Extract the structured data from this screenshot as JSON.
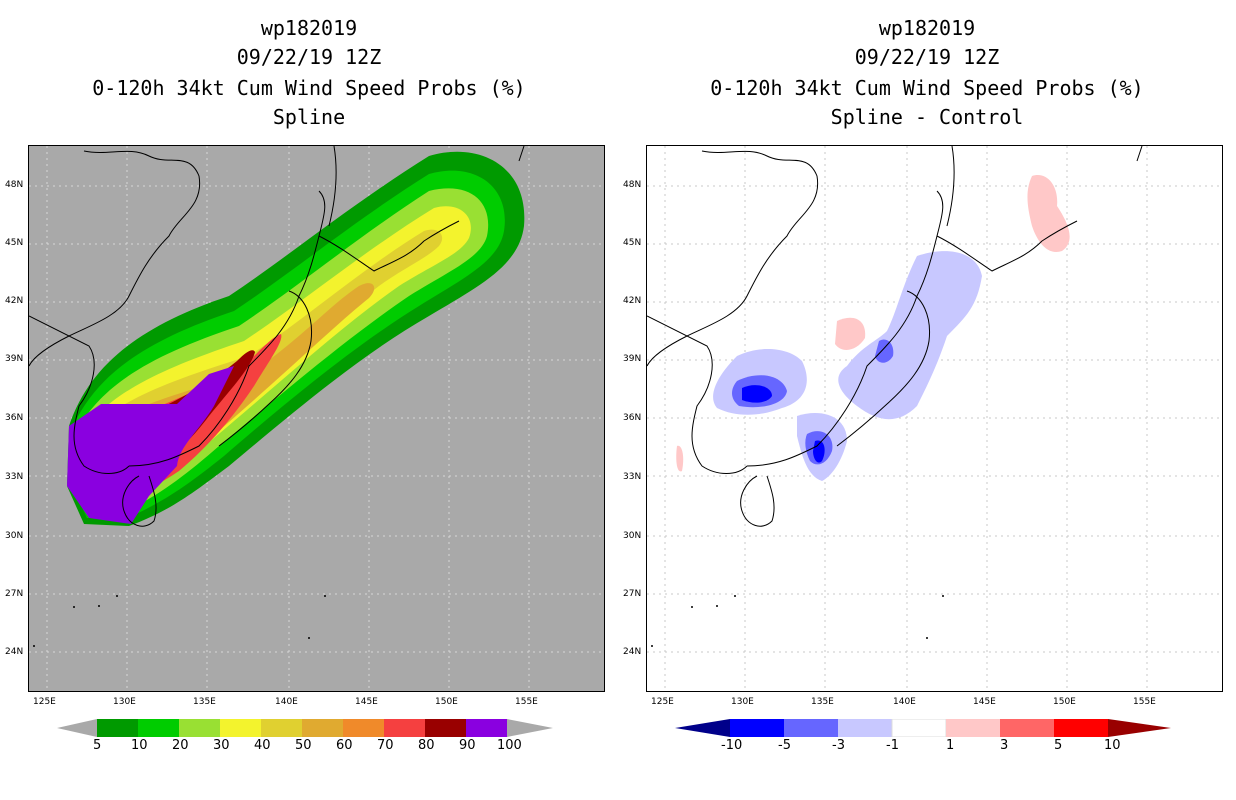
{
  "left_panel": {
    "title_line1": "wp182019",
    "title_line2": "09/22/19 12Z",
    "title_line3": "0-120h 34kt Cum Wind Speed Probs (%)",
    "title_line4": "Spline",
    "colorbar_labels": [
      "5",
      "10",
      "20",
      "30",
      "40",
      "50",
      "60",
      "70",
      "80",
      "90",
      "100"
    ],
    "colorbar_colors": [
      "#009a00",
      "#00cc00",
      "#99e033",
      "#f3f32d",
      "#e0d030",
      "#e0aa30",
      "#f08a2a",
      "#f54040",
      "#990000",
      "#8a00e0"
    ],
    "background_color": "#a9a9a9"
  },
  "right_panel": {
    "title_line1": "wp182019",
    "title_line2": "09/22/19 12Z",
    "title_line3": "0-120h 34kt Cum Wind Speed Probs (%)",
    "title_line4": "Spline - Control",
    "colorbar_labels": [
      "-10",
      "-5",
      "-3",
      "-1",
      "1",
      "3",
      "5",
      "10"
    ],
    "colorbar_colors": [
      "#00008a",
      "#0000ff",
      "#6666ff",
      "#c8c8ff",
      "#ffffff",
      "#ffc8c8",
      "#ff6666",
      "#ff0000",
      "#990000"
    ],
    "background_color": "#ffffff"
  },
  "axes": {
    "lat_labels": [
      "48N",
      "45N",
      "42N",
      "39N",
      "36N",
      "33N",
      "30N",
      "27N",
      "24N"
    ],
    "lon_labels": [
      "125E",
      "130E",
      "135E",
      "140E",
      "145E",
      "150E",
      "155E"
    ]
  }
}
